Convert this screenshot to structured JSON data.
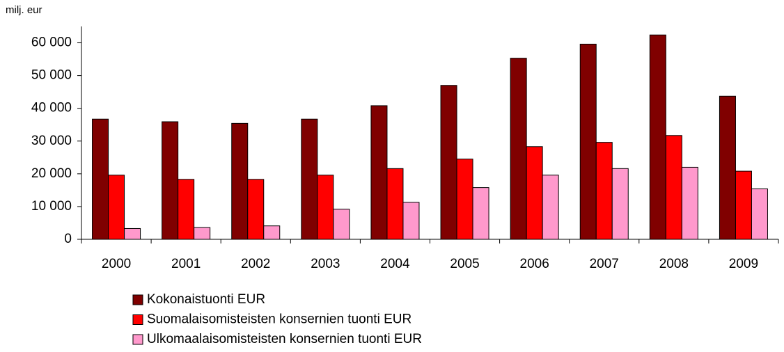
{
  "chart_data": {
    "type": "bar",
    "y_label": "milj. eur",
    "categories": [
      "2000",
      "2001",
      "2002",
      "2003",
      "2004",
      "2005",
      "2006",
      "2007",
      "2008",
      "2009"
    ],
    "series": [
      {
        "name": "Kokonaistuonti EUR",
        "color": "#800000",
        "values": [
          36700,
          35900,
          35400,
          36700,
          40800,
          47000,
          55300,
          59600,
          62400,
          43700
        ]
      },
      {
        "name": "Suomalaisomisteisten konsernien tuonti EUR",
        "color": "#ff0000",
        "values": [
          19600,
          18300,
          18300,
          19600,
          21600,
          24500,
          28300,
          29600,
          31700,
          20800
        ]
      },
      {
        "name": "Ulkomaalaisomisteisten konsernien tuonti EUR",
        "color": "#ff99cc",
        "values": [
          3300,
          3600,
          4100,
          9200,
          11300,
          15800,
          19600,
          21600,
          22000,
          15400
        ]
      }
    ],
    "ylim": [
      0,
      65000
    ],
    "yticks": [
      0,
      {
        "value": 10000,
        "label": "10 000"
      },
      {
        "value": 20000,
        "label": "20 000"
      },
      {
        "value": 30000,
        "label": "30 000"
      },
      {
        "value": 40000,
        "label": "40 000"
      },
      {
        "value": 50000,
        "label": "50 000"
      },
      {
        "value": 60000,
        "label": "60 000"
      }
    ],
    "grid": false,
    "legend": "bottom"
  }
}
